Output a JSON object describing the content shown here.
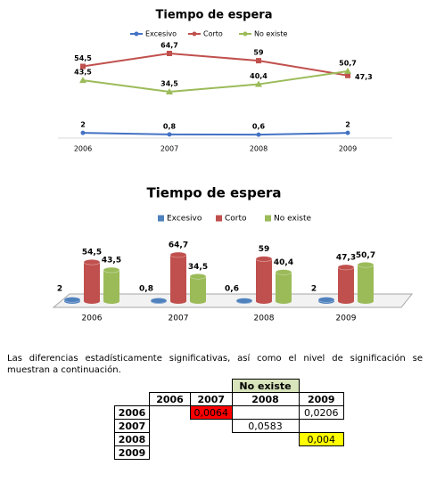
{
  "chart_data": [
    {
      "type": "line",
      "title": "Tiempo de espera",
      "categories": [
        "2006",
        "2007",
        "2008",
        "2009"
      ],
      "series": [
        {
          "name": "Excesivo",
          "color": "#4472c4",
          "values": [
            2,
            0.8,
            0.6,
            2
          ],
          "value_labels": [
            "2",
            "0,8",
            "0,6",
            "2"
          ]
        },
        {
          "name": "Corto",
          "color": "#c0504d",
          "values": [
            54.5,
            64.7,
            59,
            47.3
          ],
          "value_labels": [
            "54,5",
            "64,7",
            "59",
            "47,3"
          ]
        },
        {
          "name": "No existe",
          "color": "#9bbb59",
          "values": [
            43.5,
            34.5,
            40.4,
            50.7
          ],
          "value_labels": [
            "43,5",
            "34,5",
            "40,4",
            "50,7"
          ]
        }
      ]
    },
    {
      "type": "bar",
      "title": "Tiempo de espera",
      "categories": [
        "2006",
        "2007",
        "2008",
        "2009"
      ],
      "series": [
        {
          "name": "Excesivo",
          "color": "#4f81bd",
          "values": [
            2,
            0.8,
            0.6,
            2
          ],
          "value_labels": [
            "2",
            "0,8",
            "0,6",
            "2"
          ]
        },
        {
          "name": "Corto",
          "color": "#c0504d",
          "values": [
            54.5,
            64.7,
            59,
            47.3
          ],
          "value_labels": [
            "54,5",
            "64,7",
            "59",
            "47,3"
          ]
        },
        {
          "name": "No existe",
          "color": "#9bbb59",
          "values": [
            43.5,
            34.5,
            40.4,
            50.7
          ],
          "value_labels": [
            "43,5",
            "34,5",
            "40,4",
            "50,7"
          ]
        }
      ]
    }
  ],
  "paragraph": "Las diferencias estadísticamente significativas, así como el nivel de significación se muestran a continuación.",
  "table": {
    "group_header": "No existe",
    "columns": [
      "2006",
      "2007",
      "2008",
      "2009"
    ],
    "rows": [
      {
        "label": "2006",
        "cells": [
          null,
          "0,0064",
          null,
          "0,0206"
        ]
      },
      {
        "label": "2007",
        "cells": [
          null,
          null,
          "0,0583",
          null
        ]
      },
      {
        "label": "2008",
        "cells": [
          null,
          null,
          null,
          "0,004"
        ]
      },
      {
        "label": "2009",
        "cells": [
          null,
          null,
          null,
          null
        ]
      }
    ]
  }
}
